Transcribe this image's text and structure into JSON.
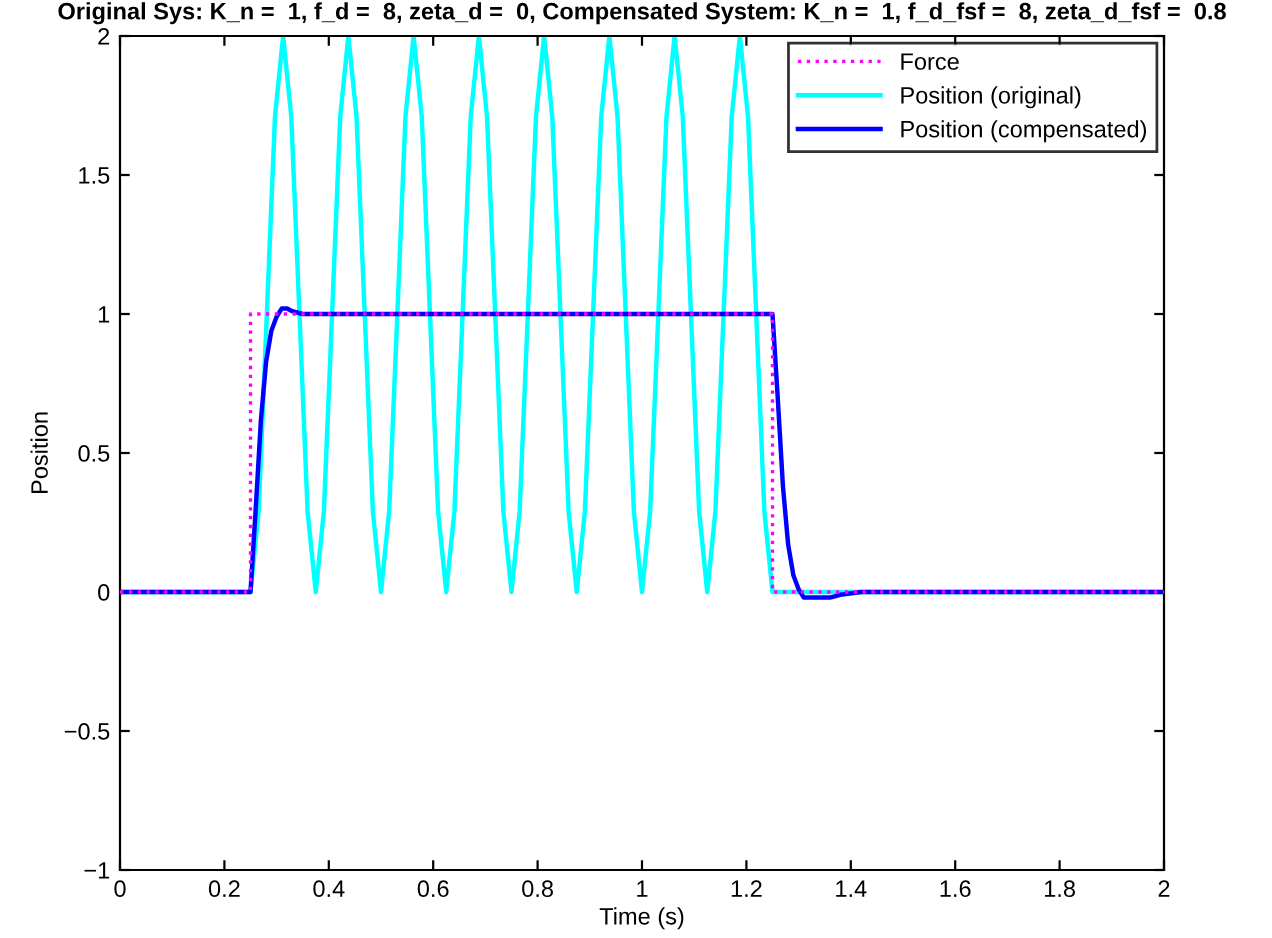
{
  "chart_data": {
    "type": "line",
    "title": "Original Sys: K_n =  1, f_d =  8, zeta_d =  0, Compensated System: K_n =  1, f_d_fsf =  8, zeta_d_fsf =  0.8",
    "xlabel": "Time (s)",
    "ylabel": "Position",
    "series": [
      {
        "name": "Force",
        "color": "#ff00ff",
        "line_style": "dotted",
        "x": [
          0,
          0.25,
          0.25,
          1.25,
          1.25,
          2
        ],
        "values": [
          0,
          0,
          1,
          1,
          0,
          0
        ]
      },
      {
        "name": "Position (original)",
        "color": "#00ffff",
        "line_style": "solid",
        "x": [
          0,
          0.25,
          0.2656,
          0.2813,
          0.2969,
          0.3125,
          0.3281,
          0.3438,
          0.3594,
          0.375,
          0.3906,
          0.4063,
          0.4219,
          0.4375,
          0.4531,
          0.4688,
          0.4844,
          0.5,
          0.5156,
          0.5313,
          0.5469,
          0.5625,
          0.5781,
          0.5938,
          0.6094,
          0.625,
          0.6406,
          0.6563,
          0.6719,
          0.6875,
          0.7031,
          0.7188,
          0.7344,
          0.75,
          0.7656,
          0.7813,
          0.7969,
          0.8125,
          0.8281,
          0.8438,
          0.8594,
          0.875,
          0.8906,
          0.9063,
          0.9219,
          0.9375,
          0.9531,
          0.9688,
          0.9844,
          1.0,
          1.0156,
          1.0313,
          1.0469,
          1.0625,
          1.0781,
          1.0938,
          1.1094,
          1.125,
          1.1406,
          1.1563,
          1.1719,
          1.1875,
          1.2031,
          1.2188,
          1.2344,
          1.25,
          2
        ],
        "values": [
          0,
          0,
          0.29,
          1,
          1.71,
          2,
          1.71,
          1,
          0.29,
          0,
          0.29,
          1,
          1.71,
          2,
          1.71,
          1,
          0.29,
          0,
          0.29,
          1,
          1.71,
          2,
          1.71,
          1,
          0.29,
          0,
          0.29,
          1,
          1.71,
          2,
          1.71,
          1,
          0.29,
          0,
          0.29,
          1,
          1.71,
          2,
          1.71,
          1,
          0.29,
          0,
          0.29,
          1,
          1.71,
          2,
          1.71,
          1,
          0.29,
          0,
          0.29,
          1,
          1.71,
          2,
          1.71,
          1,
          0.29,
          0,
          0.29,
          1,
          1.71,
          2,
          1.71,
          1,
          0.29,
          0,
          0
        ]
      },
      {
        "name": "Position (compensated)",
        "color": "#0000ff",
        "line_style": "solid",
        "x": [
          0,
          0.25,
          0.26,
          0.27,
          0.28,
          0.29,
          0.3,
          0.31,
          0.32,
          0.33,
          0.35,
          0.4,
          1.25,
          1.26,
          1.27,
          1.28,
          1.29,
          1.3,
          1.31,
          1.32,
          1.34,
          1.36,
          1.38,
          1.42,
          1.5,
          2
        ],
        "values": [
          0,
          0,
          0.3,
          0.62,
          0.83,
          0.94,
          0.99,
          1.02,
          1.02,
          1.01,
          1,
          1,
          1,
          0.7,
          0.38,
          0.17,
          0.06,
          0.01,
          -0.02,
          -0.02,
          -0.02,
          -0.02,
          -0.01,
          0,
          0,
          0
        ]
      }
    ],
    "xlim": [
      0,
      2
    ],
    "ylim": [
      -1,
      2
    ],
    "xticks": [
      0,
      0.2,
      0.4,
      0.6,
      0.8,
      1,
      1.2,
      1.4,
      1.6,
      1.8,
      2
    ],
    "yticks": [
      {
        "value": -1,
        "label": "−1"
      },
      {
        "value": -0.5,
        "label": "−0.5"
      },
      0,
      0.5,
      1,
      1.5,
      2
    ],
    "grid": false,
    "legend": "top right",
    "marker": "none"
  }
}
